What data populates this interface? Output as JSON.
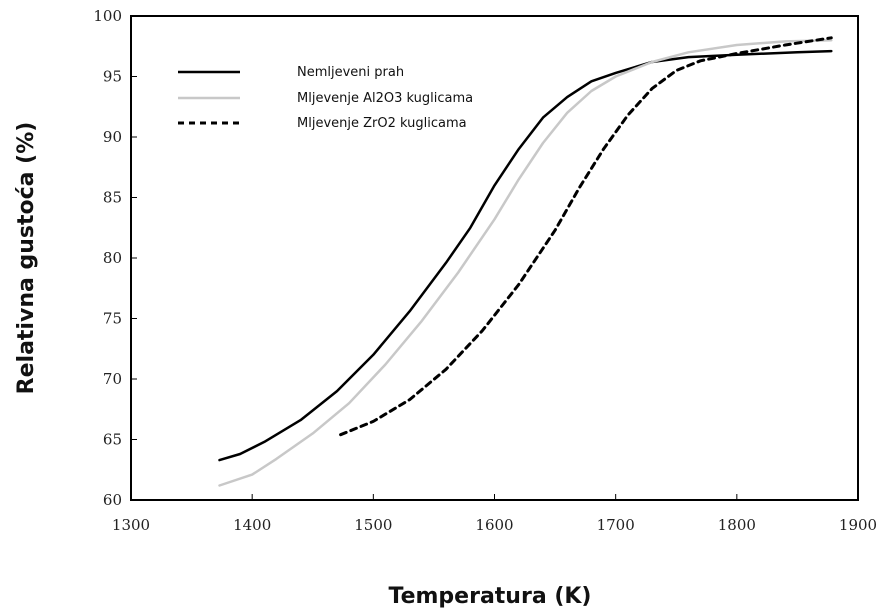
{
  "chart_data": {
    "type": "line",
    "title": "",
    "xlabel": "Temperatura (K)",
    "ylabel": "Relativna gustoća (%)",
    "xlim": [
      1300,
      1900
    ],
    "ylim": [
      60,
      100
    ],
    "xticks": [
      1300,
      1400,
      1500,
      1600,
      1700,
      1800,
      1900
    ],
    "yticks": [
      60,
      65,
      70,
      75,
      80,
      85,
      90,
      95,
      100
    ],
    "grid": false,
    "legend_position": "top-left",
    "series": [
      {
        "name": "Nemljeveni prah",
        "style": "solid",
        "color": "#000000",
        "x": [
          1373,
          1390,
          1410,
          1440,
          1470,
          1500,
          1530,
          1560,
          1580,
          1600,
          1620,
          1640,
          1660,
          1680,
          1700,
          1730,
          1760,
          1800,
          1850,
          1878
        ],
        "y": [
          63.3,
          63.8,
          64.8,
          66.6,
          69.0,
          72.0,
          75.6,
          79.6,
          82.5,
          86.0,
          89.0,
          91.6,
          93.3,
          94.6,
          95.3,
          96.2,
          96.6,
          96.8,
          97.0,
          97.1
        ]
      },
      {
        "name": "Mljevenje Al2O3 kuglicama",
        "style": "solid-light",
        "color": "#c8c8c8",
        "x": [
          1373,
          1400,
          1420,
          1450,
          1480,
          1510,
          1540,
          1570,
          1600,
          1620,
          1640,
          1660,
          1680,
          1700,
          1730,
          1760,
          1800,
          1840,
          1878
        ],
        "y": [
          61.2,
          62.1,
          63.4,
          65.5,
          68.0,
          71.2,
          74.8,
          78.8,
          83.2,
          86.5,
          89.5,
          92.0,
          93.8,
          95.0,
          96.2,
          97.0,
          97.6,
          97.9,
          98.0
        ]
      },
      {
        "name": "Mljevenje ZrO2 kuglicama",
        "style": "dashed",
        "color": "#000000",
        "x": [
          1473,
          1500,
          1530,
          1560,
          1590,
          1620,
          1650,
          1670,
          1690,
          1710,
          1730,
          1750,
          1770,
          1800,
          1840,
          1878
        ],
        "y": [
          65.4,
          66.5,
          68.3,
          70.8,
          74.0,
          77.8,
          82.3,
          85.8,
          89.0,
          91.8,
          94.0,
          95.5,
          96.3,
          96.9,
          97.6,
          98.2
        ]
      }
    ]
  }
}
